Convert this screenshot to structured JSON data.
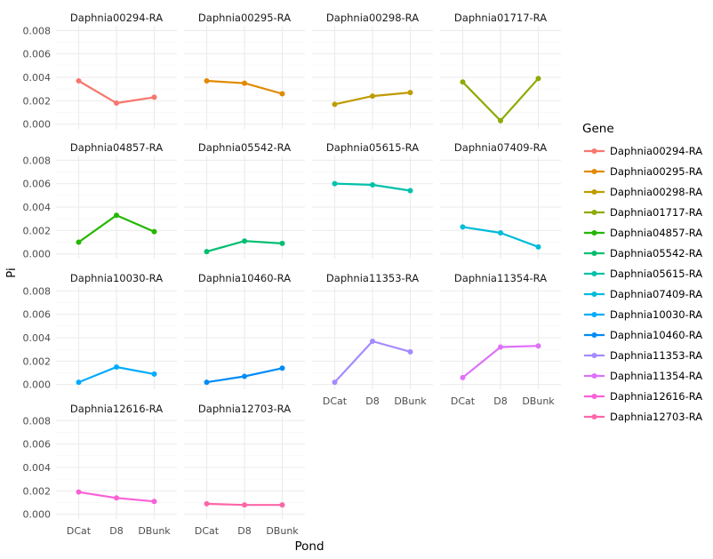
{
  "chart_data": {
    "type": "line",
    "xlabel": "Pond",
    "ylabel": "Pi",
    "ylim": [
      0,
      0.008
    ],
    "yticks": [
      "0.000",
      "0.002",
      "0.004",
      "0.006",
      "0.008"
    ],
    "categories": [
      "DCat",
      "D8",
      "DBunk"
    ],
    "grid": true,
    "facet_wrap": {
      "ncol": 4
    },
    "legend": {
      "title": "Gene",
      "position": "right"
    },
    "series": [
      {
        "name": "Daphnia00294-RA",
        "color": "#F8766D",
        "values": [
          0.0037,
          0.0018,
          0.0023
        ]
      },
      {
        "name": "Daphnia00295-RA",
        "color": "#E18A00",
        "values": [
          0.0037,
          0.0035,
          0.0026
        ]
      },
      {
        "name": "Daphnia00298-RA",
        "color": "#BE9C00",
        "values": [
          0.0017,
          0.0024,
          0.0027
        ]
      },
      {
        "name": "Daphnia01717-RA",
        "color": "#8CAB00",
        "values": [
          0.0036,
          0.0003,
          0.0039
        ]
      },
      {
        "name": "Daphnia04857-RA",
        "color": "#24B700",
        "values": [
          0.001,
          0.0033,
          0.0019
        ]
      },
      {
        "name": "Daphnia05542-RA",
        "color": "#00BE70",
        "values": [
          0.0002,
          0.0011,
          0.0009
        ]
      },
      {
        "name": "Daphnia05615-RA",
        "color": "#00C1AB",
        "values": [
          0.006,
          0.0059,
          0.0054
        ]
      },
      {
        "name": "Daphnia07409-RA",
        "color": "#00BBDA",
        "values": [
          0.0023,
          0.0018,
          0.0006
        ]
      },
      {
        "name": "Daphnia10030-RA",
        "color": "#00ACFC",
        "values": [
          0.0002,
          0.0015,
          0.0009
        ]
      },
      {
        "name": "Daphnia10460-RA",
        "color": "#008CF7",
        "values": [
          0.0002,
          0.0007,
          0.0014
        ]
      },
      {
        "name": "Daphnia11353-RA",
        "color": "#A58AFF",
        "values": [
          0.0002,
          0.0037,
          0.0028
        ]
      },
      {
        "name": "Daphnia11354-RA",
        "color": "#DF70F8",
        "values": [
          0.0006,
          0.0032,
          0.0033
        ]
      },
      {
        "name": "Daphnia12616-RA",
        "color": "#FB61D7",
        "values": [
          0.0019,
          0.0014,
          0.0011
        ]
      },
      {
        "name": "Daphnia12703-RA",
        "color": "#FF66A8",
        "values": [
          0.0009,
          0.0008,
          0.0008
        ]
      }
    ]
  }
}
